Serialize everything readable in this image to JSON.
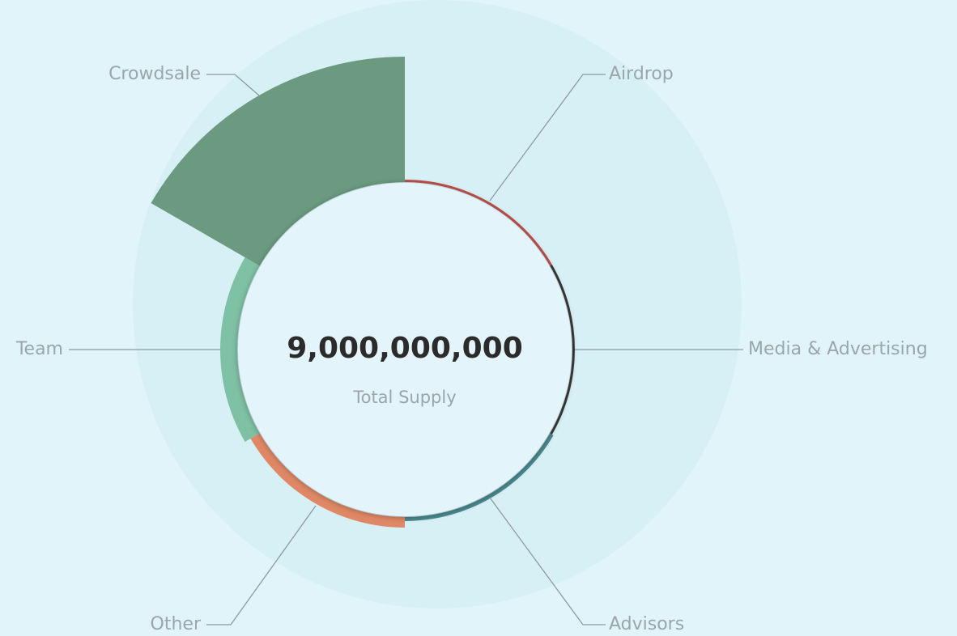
{
  "chart_data": {
    "type": "rose",
    "center_value": "9,000,000,000",
    "center_label": "Total Supply",
    "categories": [
      "Airdrop",
      "Media & Advertising",
      "Advisors",
      "Other",
      "Team",
      "Crowdsale"
    ],
    "values": [
      3,
      3,
      5,
      13,
      21,
      155
    ],
    "colors": [
      "#c0504d",
      "#3a3a3a",
      "#4a8a90",
      "#e08865",
      "#7fc1a5",
      "#6b9a80"
    ]
  }
}
